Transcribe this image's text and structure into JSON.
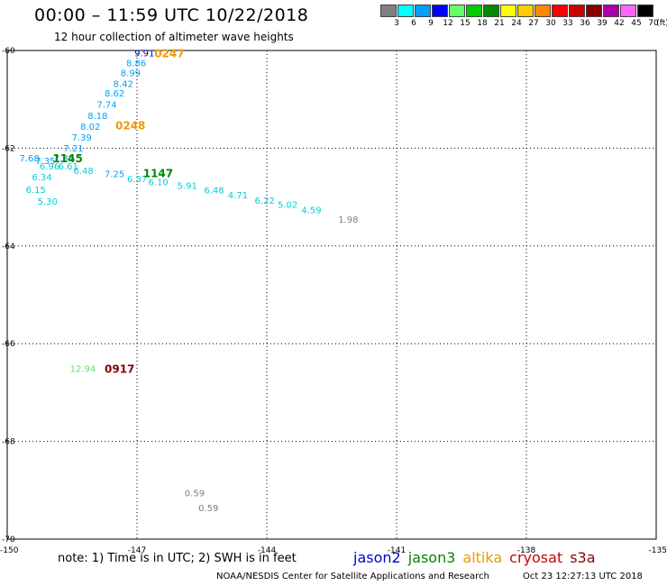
{
  "header": {
    "title": "00:00 – 11:59 UTC 10/22/2018",
    "subtitle": "12 hour collection of altimeter wave heights"
  },
  "legend": {
    "unit": "(ft)",
    "bins": [
      {
        "label": "3",
        "color": "#808080"
      },
      {
        "label": "6",
        "color": "#00ffff"
      },
      {
        "label": "9",
        "color": "#00a0ff"
      },
      {
        "label": "12",
        "color": "#0000ff"
      },
      {
        "label": "15",
        "color": "#66ff66"
      },
      {
        "label": "18",
        "color": "#00cc00"
      },
      {
        "label": "21",
        "color": "#008800"
      },
      {
        "label": "24",
        "color": "#ffff00"
      },
      {
        "label": "27",
        "color": "#ffcc00"
      },
      {
        "label": "30",
        "color": "#ff8800"
      },
      {
        "label": "33",
        "color": "#ff0000"
      },
      {
        "label": "36",
        "color": "#cc0000"
      },
      {
        "label": "39",
        "color": "#880000"
      },
      {
        "label": "42",
        "color": "#aa00aa"
      },
      {
        "label": "45",
        "color": "#ff66ff"
      },
      {
        "label": "70",
        "color": "#000000"
      }
    ]
  },
  "chart_data": {
    "type": "scatter",
    "xlim": [
      -150,
      -135
    ],
    "ylim": [
      -70,
      -60
    ],
    "x_ticks": [
      "-150",
      "-147",
      "-144",
      "-141",
      "-138",
      "-135"
    ],
    "y_ticks": [
      "-60",
      "-62",
      "-64",
      "-66",
      "-68",
      "-70"
    ],
    "grid": true,
    "points": [
      {
        "lon": -147.06,
        "lat": -60.05,
        "value": "9.91",
        "color": "#0000cc"
      },
      {
        "lon": -147.25,
        "lat": -60.25,
        "value": "8.86",
        "color": "#00a0ff"
      },
      {
        "lon": -147.38,
        "lat": -60.45,
        "value": "8.99",
        "color": "#00a0ff"
      },
      {
        "lon": -147.55,
        "lat": -60.67,
        "value": "8.42",
        "color": "#00a0ff"
      },
      {
        "lon": -147.75,
        "lat": -60.87,
        "value": "8.62",
        "color": "#00a0ff"
      },
      {
        "lon": -147.93,
        "lat": -61.1,
        "value": "7.74",
        "color": "#00a0ff"
      },
      {
        "lon": -148.14,
        "lat": -61.33,
        "value": "8.18",
        "color": "#00a0ff"
      },
      {
        "lon": -148.31,
        "lat": -61.55,
        "value": "8.02",
        "color": "#00a0ff"
      },
      {
        "lon": -148.51,
        "lat": -61.77,
        "value": "7.39",
        "color": "#00a0ff"
      },
      {
        "lon": -148.7,
        "lat": -61.99,
        "value": "7.21",
        "color": "#00a0ff"
      },
      {
        "lon": -149.72,
        "lat": -62.2,
        "value": "7.68",
        "color": "#00a0ff"
      },
      {
        "lon": -149.35,
        "lat": -62.25,
        "value": "7.35",
        "color": "#00a0ff"
      },
      {
        "lon": -148.92,
        "lat": -62.2,
        "value": "7.35",
        "color": "#00a0ff"
      },
      {
        "lon": -149.25,
        "lat": -62.36,
        "value": "6.96",
        "color": "#00d0d8"
      },
      {
        "lon": -148.82,
        "lat": -62.36,
        "value": "6.61",
        "color": "#00d0d8"
      },
      {
        "lon": -149.43,
        "lat": -62.58,
        "value": "6.34",
        "color": "#00d0d8"
      },
      {
        "lon": -148.47,
        "lat": -62.45,
        "value": "6.48",
        "color": "#00d0d8"
      },
      {
        "lon": -147.75,
        "lat": -62.52,
        "value": "7.25",
        "color": "#00a0ff"
      },
      {
        "lon": -147.23,
        "lat": -62.62,
        "value": "6.37",
        "color": "#00d0d8"
      },
      {
        "lon": -146.74,
        "lat": -62.68,
        "value": "6.10",
        "color": "#00d0d8"
      },
      {
        "lon": -146.07,
        "lat": -62.76,
        "value": "5.91",
        "color": "#00d0d8"
      },
      {
        "lon": -145.45,
        "lat": -62.85,
        "value": "6.48",
        "color": "#00d0d8"
      },
      {
        "lon": -144.9,
        "lat": -62.95,
        "value": "4.71",
        "color": "#00d0d8"
      },
      {
        "lon": -144.28,
        "lat": -63.06,
        "value": "6.22",
        "color": "#00d0d8"
      },
      {
        "lon": -143.75,
        "lat": -63.15,
        "value": "5.02",
        "color": "#00d0d8"
      },
      {
        "lon": -143.2,
        "lat": -63.26,
        "value": "4.59",
        "color": "#00d0d8"
      },
      {
        "lon": -149.57,
        "lat": -62.84,
        "value": "6.15",
        "color": "#00d0d8"
      },
      {
        "lon": -149.3,
        "lat": -63.08,
        "value": "5.30",
        "color": "#00d0d8"
      },
      {
        "lon": -142.35,
        "lat": -63.45,
        "value": "1.98",
        "color": "#808080"
      },
      {
        "lon": -148.55,
        "lat": -66.5,
        "value": "12.94",
        "color": "#66dd66"
      },
      {
        "lon": -145.9,
        "lat": -69.05,
        "value": "0.59",
        "color": "#808080"
      },
      {
        "lon": -145.58,
        "lat": -69.35,
        "value": "0.59",
        "color": "#808080"
      }
    ],
    "pass_labels": [
      {
        "lon": -146.6,
        "lat": -60.05,
        "text": "0247",
        "color": "#ee9900"
      },
      {
        "lon": -147.5,
        "lat": -61.52,
        "text": "0248",
        "color": "#ee9900"
      },
      {
        "lon": -148.95,
        "lat": -62.2,
        "text": "1145",
        "color": "#008800"
      },
      {
        "lon": -146.86,
        "lat": -62.5,
        "text": "1147",
        "color": "#008800"
      },
      {
        "lon": -147.75,
        "lat": -66.5,
        "text": "0917",
        "color": "#880000"
      }
    ]
  },
  "footer": {
    "note": "note:  1) Time is in UTC;  2) SWH is in feet",
    "satellites": [
      {
        "name": "jason2",
        "color": "#0000cc"
      },
      {
        "name": "jason3",
        "color": "#008800"
      },
      {
        "name": "altika",
        "color": "#ee9900"
      },
      {
        "name": "cryosat",
        "color": "#cc0000"
      },
      {
        "name": "s3a",
        "color": "#880000"
      }
    ],
    "source": "NOAA/NESDIS Center for Satellite Applications and Research",
    "timestamp": "Oct 23 12:27:13 UTC 2018"
  }
}
